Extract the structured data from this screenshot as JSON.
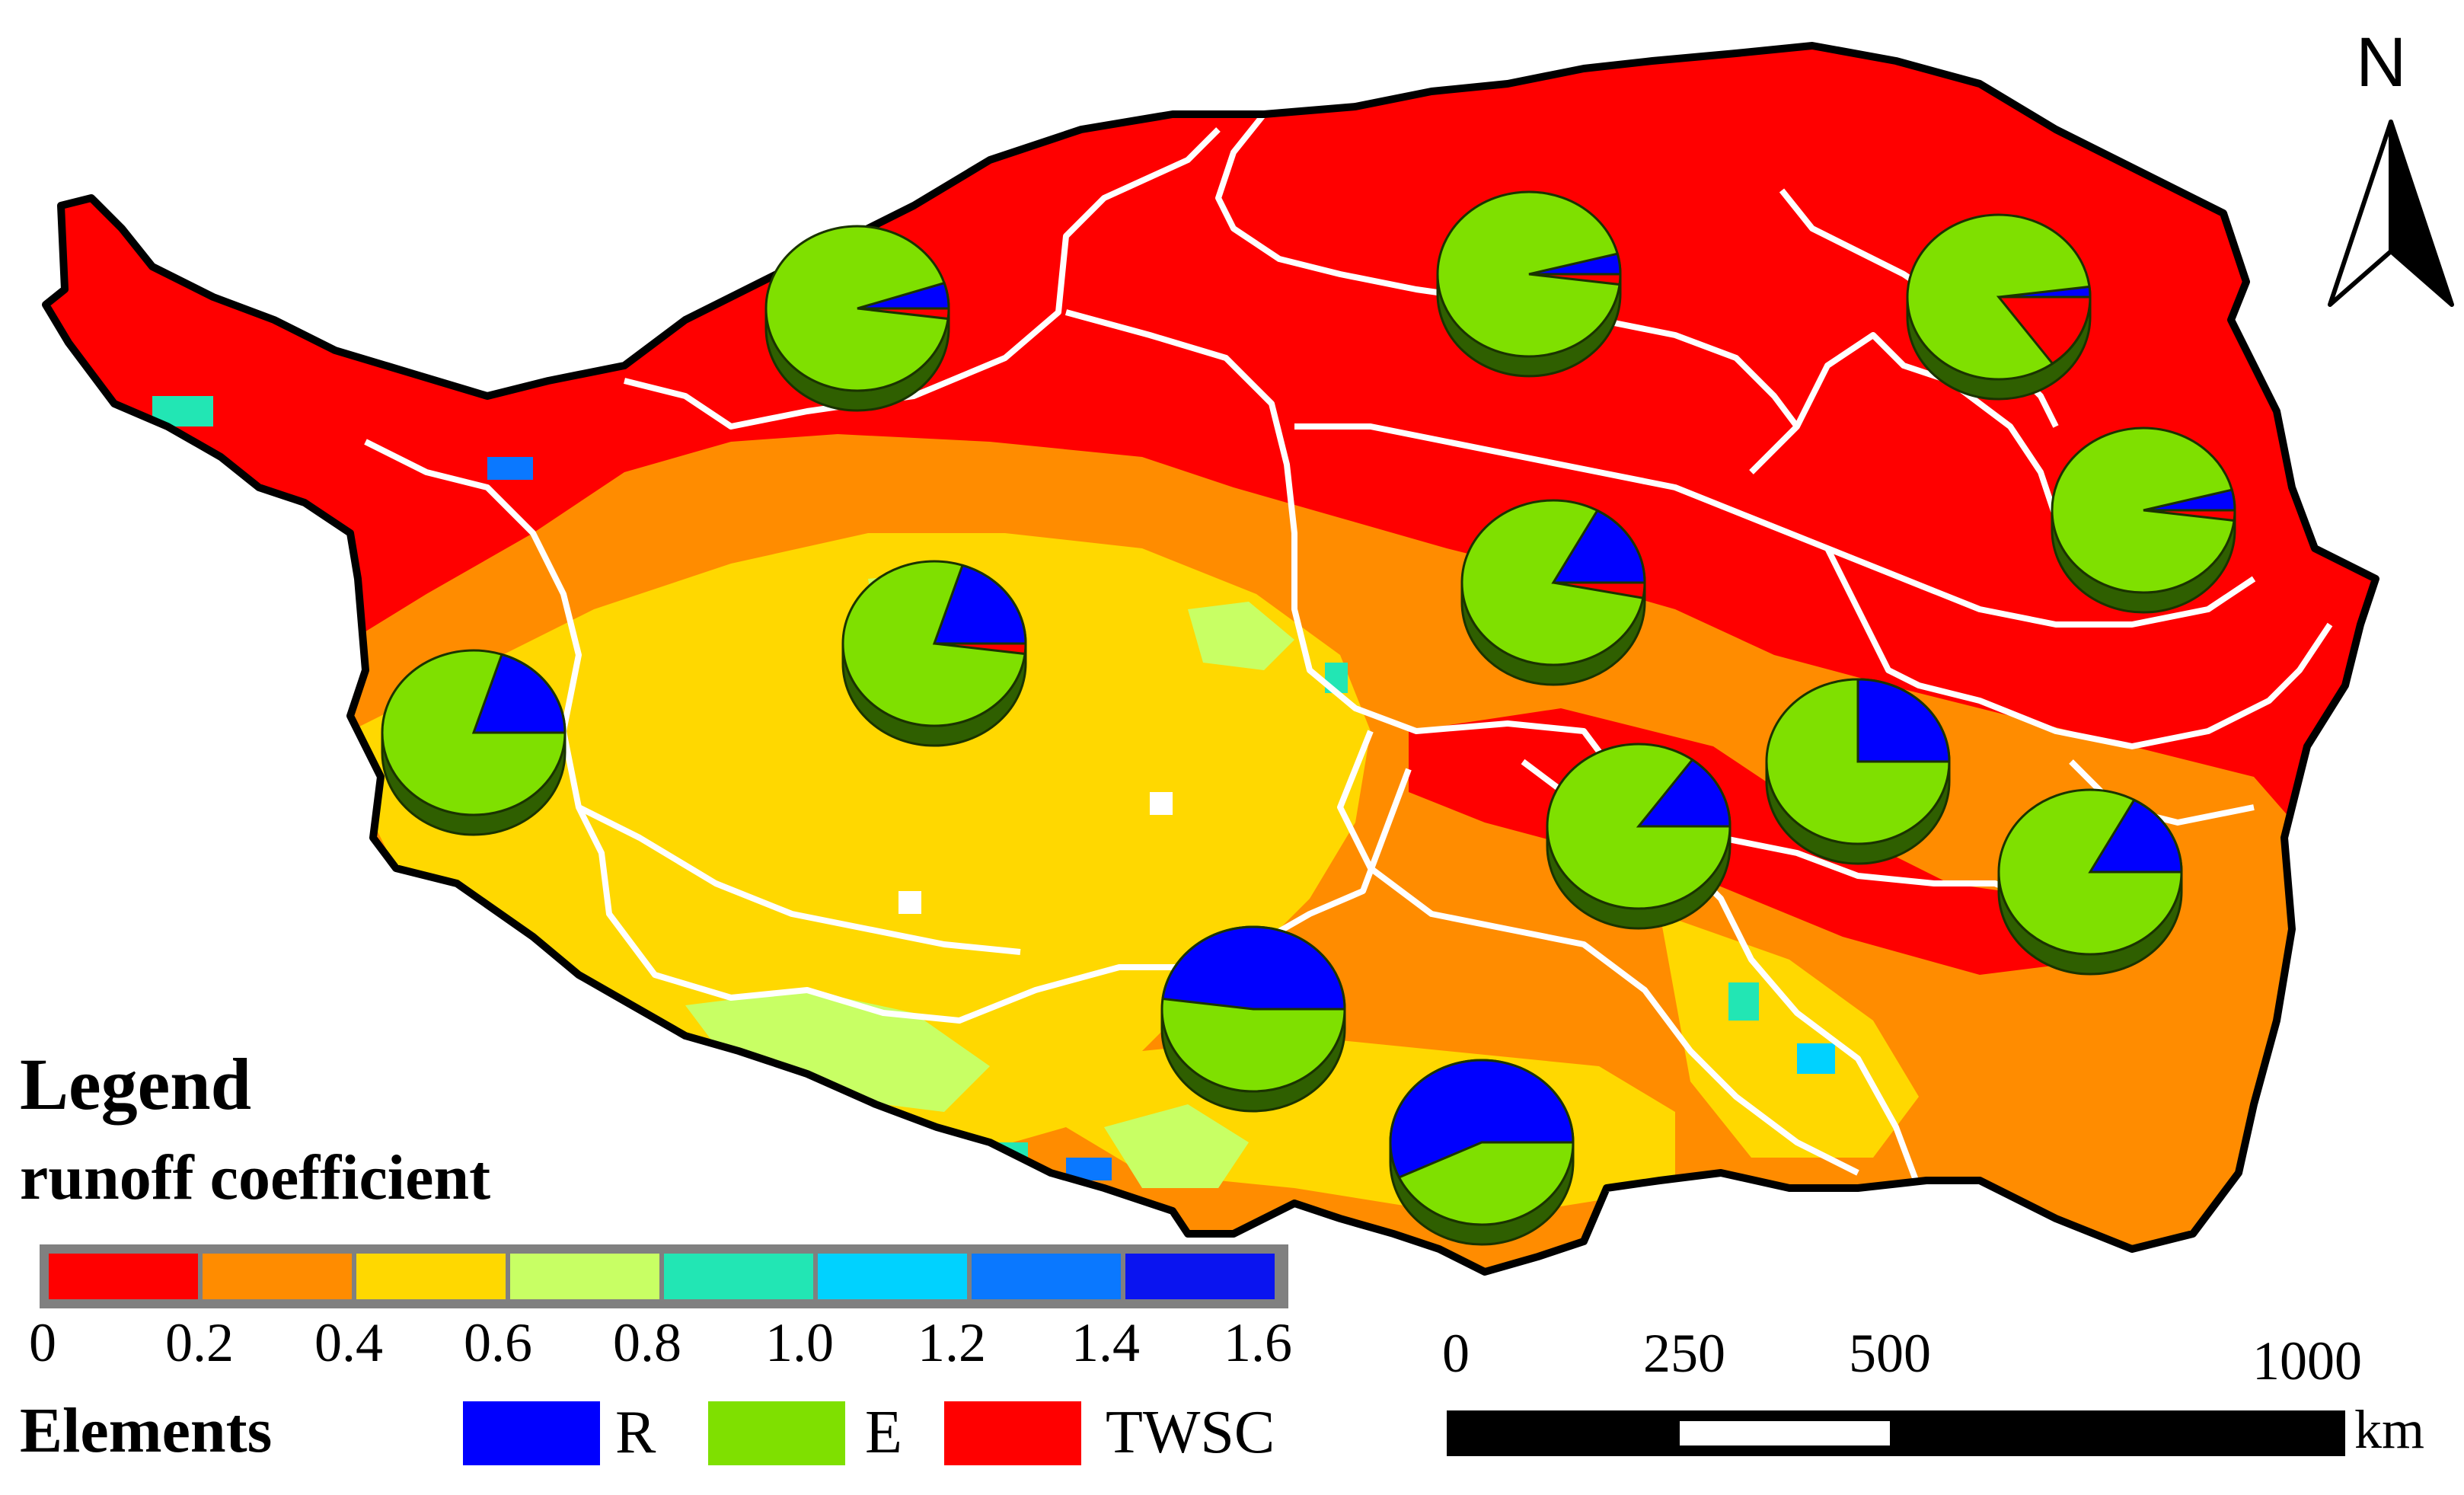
{
  "legend": {
    "title": "Legend",
    "subtitle": "runoff coefficient",
    "colors": [
      "#ff0000",
      "#ff8c00",
      "#ffd800",
      "#c8ff64",
      "#22e6b4",
      "#00d2ff",
      "#0a78ff",
      "#0a14f0"
    ],
    "ticks": [
      "0",
      "0.2",
      "0.4",
      "0.6",
      "0.8",
      "1.0",
      "1.2",
      "1.4",
      "1.6"
    ]
  },
  "elements": {
    "label": "Elements",
    "items": [
      {
        "name": "R",
        "color": "#0000ff"
      },
      {
        "name": "E",
        "color": "#7fe000"
      },
      {
        "name": "TWSC",
        "color": "#ff0000"
      }
    ]
  },
  "scale_bar": {
    "labels": [
      "0",
      "250",
      "500",
      "1000"
    ],
    "unit": "km"
  },
  "north_arrow": {
    "label": "N",
    "icon": "north-arrow-icon"
  },
  "pie_charts": [
    {
      "id": "pie-1",
      "R": 0.05,
      "E": 0.93,
      "TWSC": 0.02
    },
    {
      "id": "pie-2",
      "R": 0.04,
      "E": 0.94,
      "TWSC": 0.02
    },
    {
      "id": "pie-3",
      "R": 0.02,
      "E": 0.83,
      "TWSC": 0.15
    },
    {
      "id": "pie-4",
      "R": 0.04,
      "E": 0.94,
      "TWSC": 0.02
    },
    {
      "id": "pie-5",
      "R": 0.17,
      "E": 0.8,
      "TWSC": 0.03
    },
    {
      "id": "pie-6",
      "R": 0.2,
      "E": 0.78,
      "TWSC": 0.02
    },
    {
      "id": "pie-7",
      "R": 0.2,
      "E": 0.8,
      "TWSC": 0.0
    },
    {
      "id": "pie-8",
      "R": 0.25,
      "E": 0.75,
      "TWSC": 0.0
    },
    {
      "id": "pie-9",
      "R": 0.15,
      "E": 0.85,
      "TWSC": 0.0
    },
    {
      "id": "pie-10",
      "R": 0.17,
      "E": 0.83,
      "TWSC": 0.0
    },
    {
      "id": "pie-11",
      "R": 0.48,
      "E": 0.52,
      "TWSC": 0.0
    },
    {
      "id": "pie-12",
      "R": 0.57,
      "E": 0.43,
      "TWSC": 0.0
    }
  ]
}
